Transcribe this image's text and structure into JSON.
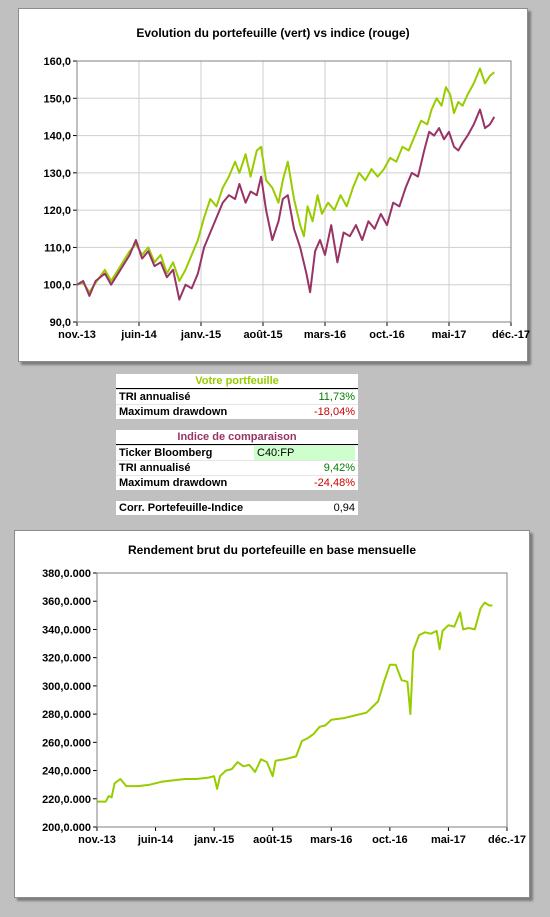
{
  "chart_data": [
    {
      "type": "line",
      "title": "Evolution du portefeuille (vert) vs indice (rouge)",
      "ylim": [
        90,
        160
      ],
      "yticks": [
        "90,0",
        "100,0",
        "110,0",
        "120,0",
        "130,0",
        "140,0",
        "150,0",
        "160,0"
      ],
      "xticks": [
        "nov.-13",
        "juin-14",
        "janv.-15",
        "août-15",
        "mars-16",
        "oct.-16",
        "mai-17",
        "déc.-17"
      ],
      "grid": true,
      "series": [
        {
          "color": "#99cc00",
          "points": [
            [
              0,
              100
            ],
            [
              0.1,
              100.5
            ],
            [
              0.2,
              98
            ],
            [
              0.3,
              100.5
            ],
            [
              0.45,
              104
            ],
            [
              0.55,
              101
            ],
            [
              0.7,
              105
            ],
            [
              0.85,
              109
            ],
            [
              0.95,
              111
            ],
            [
              1.05,
              108
            ],
            [
              1.15,
              110
            ],
            [
              1.25,
              106
            ],
            [
              1.35,
              108
            ],
            [
              1.45,
              103
            ],
            [
              1.55,
              106
            ],
            [
              1.65,
              101
            ],
            [
              1.75,
              104
            ],
            [
              1.85,
              108
            ],
            [
              1.95,
              112
            ],
            [
              2.05,
              118
            ],
            [
              2.15,
              123
            ],
            [
              2.25,
              121
            ],
            [
              2.35,
              126
            ],
            [
              2.45,
              129
            ],
            [
              2.55,
              133
            ],
            [
              2.62,
              130
            ],
            [
              2.72,
              135
            ],
            [
              2.8,
              129
            ],
            [
              2.9,
              136
            ],
            [
              2.97,
              137
            ],
            [
              3.05,
              128
            ],
            [
              3.15,
              126
            ],
            [
              3.25,
              122
            ],
            [
              3.32,
              128
            ],
            [
              3.4,
              133
            ],
            [
              3.5,
              123
            ],
            [
              3.6,
              116
            ],
            [
              3.66,
              113
            ],
            [
              3.72,
              121
            ],
            [
              3.8,
              117
            ],
            [
              3.88,
              124
            ],
            [
              3.95,
              119
            ],
            [
              4.05,
              122
            ],
            [
              4.15,
              120
            ],
            [
              4.25,
              124
            ],
            [
              4.35,
              121
            ],
            [
              4.45,
              126
            ],
            [
              4.55,
              130
            ],
            [
              4.65,
              128
            ],
            [
              4.75,
              131
            ],
            [
              4.85,
              129
            ],
            [
              4.95,
              131
            ],
            [
              5.05,
              134
            ],
            [
              5.15,
              133
            ],
            [
              5.25,
              137
            ],
            [
              5.35,
              136
            ],
            [
              5.45,
              140
            ],
            [
              5.55,
              144
            ],
            [
              5.65,
              143
            ],
            [
              5.72,
              147
            ],
            [
              5.8,
              150
            ],
            [
              5.88,
              148
            ],
            [
              5.95,
              153
            ],
            [
              6.02,
              151
            ],
            [
              6.08,
              146
            ],
            [
              6.15,
              149
            ],
            [
              6.22,
              148
            ],
            [
              6.3,
              151
            ],
            [
              6.4,
              154
            ],
            [
              6.5,
              158
            ],
            [
              6.58,
              154
            ],
            [
              6.66,
              156
            ],
            [
              6.73,
              157
            ]
          ]
        },
        {
          "color": "#993366",
          "points": [
            [
              0,
              100
            ],
            [
              0.1,
              101
            ],
            [
              0.2,
              97
            ],
            [
              0.3,
              101
            ],
            [
              0.45,
              103
            ],
            [
              0.55,
              100
            ],
            [
              0.7,
              104
            ],
            [
              0.85,
              108
            ],
            [
              0.95,
              112
            ],
            [
              1.05,
              107
            ],
            [
              1.15,
              109
            ],
            [
              1.25,
              105
            ],
            [
              1.35,
              106
            ],
            [
              1.45,
              102
            ],
            [
              1.55,
              104
            ],
            [
              1.65,
              96
            ],
            [
              1.75,
              100
            ],
            [
              1.85,
              99
            ],
            [
              1.95,
              103
            ],
            [
              2.05,
              110
            ],
            [
              2.15,
              114
            ],
            [
              2.25,
              118
            ],
            [
              2.35,
              122
            ],
            [
              2.45,
              124
            ],
            [
              2.55,
              123
            ],
            [
              2.62,
              127
            ],
            [
              2.72,
              122
            ],
            [
              2.8,
              125
            ],
            [
              2.9,
              124
            ],
            [
              2.97,
              129
            ],
            [
              3.05,
              120
            ],
            [
              3.15,
              112
            ],
            [
              3.25,
              117
            ],
            [
              3.32,
              123
            ],
            [
              3.4,
              124
            ],
            [
              3.5,
              115
            ],
            [
              3.6,
              110
            ],
            [
              3.7,
              103
            ],
            [
              3.76,
              98
            ],
            [
              3.84,
              109
            ],
            [
              3.92,
              112
            ],
            [
              4.0,
              108
            ],
            [
              4.1,
              116
            ],
            [
              4.2,
              106
            ],
            [
              4.3,
              114
            ],
            [
              4.4,
              113
            ],
            [
              4.5,
              116
            ],
            [
              4.6,
              112
            ],
            [
              4.7,
              117
            ],
            [
              4.8,
              115
            ],
            [
              4.9,
              119
            ],
            [
              5.0,
              116
            ],
            [
              5.1,
              122
            ],
            [
              5.2,
              121
            ],
            [
              5.3,
              126
            ],
            [
              5.4,
              130
            ],
            [
              5.5,
              129
            ],
            [
              5.6,
              136
            ],
            [
              5.68,
              141
            ],
            [
              5.76,
              140
            ],
            [
              5.84,
              142
            ],
            [
              5.92,
              139
            ],
            [
              6.0,
              141
            ],
            [
              6.08,
              137
            ],
            [
              6.15,
              136
            ],
            [
              6.22,
              138
            ],
            [
              6.3,
              140
            ],
            [
              6.4,
              143
            ],
            [
              6.5,
              147
            ],
            [
              6.58,
              142
            ],
            [
              6.66,
              143
            ],
            [
              6.73,
              145
            ]
          ]
        }
      ]
    },
    {
      "type": "line",
      "title": "Rendement brut du portefeuille en base mensuelle",
      "ylim": [
        200,
        380
      ],
      "yticks": [
        "200,0.000",
        "220,0.000",
        "240,0.000",
        "260,0.000",
        "280,0.000",
        "300,0.000",
        "320,0.000",
        "340,0.000",
        "360,0.000",
        "380,0.000"
      ],
      "xticks": [
        "nov.-13",
        "juin-14",
        "janv.-15",
        "août-15",
        "mars-16",
        "oct.-16",
        "mai-17",
        "déc.-17"
      ],
      "grid": false,
      "series": [
        {
          "color": "#99cc00",
          "points": [
            [
              0,
              218
            ],
            [
              0.15,
              218
            ],
            [
              0.2,
              222
            ],
            [
              0.25,
              221
            ],
            [
              0.3,
              231
            ],
            [
              0.4,
              234
            ],
            [
              0.5,
              229
            ],
            [
              0.7,
              229
            ],
            [
              0.9,
              230
            ],
            [
              1.1,
              232
            ],
            [
              1.3,
              233
            ],
            [
              1.5,
              234
            ],
            [
              1.7,
              234
            ],
            [
              1.9,
              235
            ],
            [
              2.0,
              236
            ],
            [
              2.05,
              227
            ],
            [
              2.1,
              236
            ],
            [
              2.2,
              240
            ],
            [
              2.3,
              241
            ],
            [
              2.4,
              246
            ],
            [
              2.5,
              243
            ],
            [
              2.6,
              244
            ],
            [
              2.7,
              239
            ],
            [
              2.8,
              248
            ],
            [
              2.9,
              246
            ],
            [
              3.0,
              236
            ],
            [
              3.05,
              247
            ],
            [
              3.2,
              248
            ],
            [
              3.4,
              250
            ],
            [
              3.5,
              261
            ],
            [
              3.6,
              263
            ],
            [
              3.7,
              266
            ],
            [
              3.8,
              271
            ],
            [
              3.9,
              272
            ],
            [
              4.0,
              276
            ],
            [
              4.2,
              277
            ],
            [
              4.4,
              279
            ],
            [
              4.6,
              281
            ],
            [
              4.7,
              285
            ],
            [
              4.8,
              289
            ],
            [
              4.9,
              303
            ],
            [
              5.0,
              315
            ],
            [
              5.1,
              315
            ],
            [
              5.2,
              304
            ],
            [
              5.3,
              303
            ],
            [
              5.35,
              280
            ],
            [
              5.4,
              325
            ],
            [
              5.5,
              336
            ],
            [
              5.6,
              338
            ],
            [
              5.7,
              337
            ],
            [
              5.8,
              339
            ],
            [
              5.85,
              326
            ],
            [
              5.9,
              339
            ],
            [
              6.0,
              343
            ],
            [
              6.1,
              342
            ],
            [
              6.2,
              352
            ],
            [
              6.25,
              340
            ],
            [
              6.35,
              341
            ],
            [
              6.45,
              340
            ],
            [
              6.55,
              355
            ],
            [
              6.62,
              359
            ],
            [
              6.7,
              357
            ],
            [
              6.75,
              357
            ]
          ]
        }
      ]
    }
  ],
  "portfolio": {
    "header": "Votre portfeuille",
    "tri_label": "TRI annualisé",
    "tri_value": "11,73%",
    "dd_label": "Maximum drawdown",
    "dd_value": "-18,04%"
  },
  "benchmark": {
    "header": "Indice de comparaison",
    "ticker_label": "Ticker Bloomberg",
    "ticker_value": "C40:FP",
    "tri_label": "TRI annualisé",
    "tri_value": "9,42%",
    "dd_label": "Maximum drawdown",
    "dd_value": "-24,48%"
  },
  "correlation": {
    "label": "Corr. Portefeuille-Indice",
    "value": "0,94"
  },
  "colors": {
    "portfolio": "#99cc00",
    "index": "#993366",
    "positive": "#008000",
    "negative": "#cc0000"
  }
}
